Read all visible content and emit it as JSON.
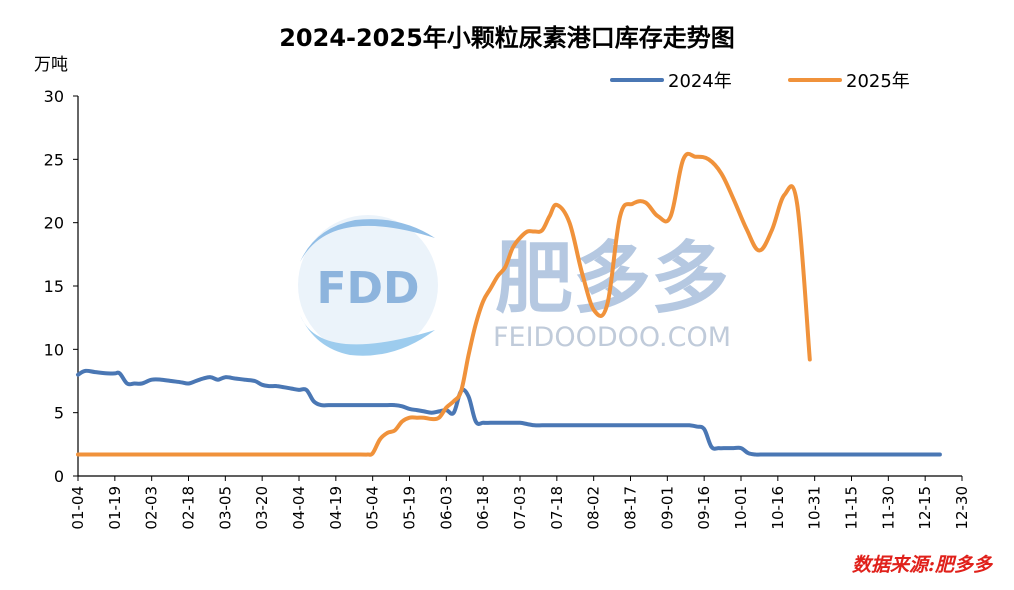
{
  "chart_data": {
    "type": "line",
    "title": "2024-2025年小颗粒尿素港口库存走势图",
    "ylabel": "万吨",
    "xlabel": "",
    "ylim": [
      0,
      30
    ],
    "yticks": [
      0,
      5,
      10,
      15,
      20,
      25,
      30
    ],
    "xticks": [
      "01-04",
      "01-19",
      "02-03",
      "02-18",
      "03-05",
      "03-20",
      "04-04",
      "04-19",
      "05-04",
      "05-19",
      "06-03",
      "06-18",
      "07-03",
      "07-18",
      "08-02",
      "08-17",
      "09-01",
      "09-16",
      "10-01",
      "10-16",
      "10-31",
      "11-15",
      "11-30",
      "12-15",
      "12-30"
    ],
    "legend_position": "top-right",
    "series": [
      {
        "name": "2024年",
        "color": "#4a77b4",
        "x": [
          0,
          2,
          4,
          8,
          11,
          13,
          15,
          17,
          19,
          21,
          24,
          26,
          28,
          30,
          32,
          34,
          36,
          37.5,
          39,
          41,
          43,
          45,
          46.5,
          47.5,
          49,
          51,
          53,
          55,
          56.5,
          57.3,
          58.2,
          59,
          62,
          65,
          67,
          70,
          72,
          73,
          74,
          75,
          76.5,
          78,
          79,
          80,
          81,
          83,
          84,
          85,
          86,
          87,
          88,
          90,
          92,
          93,
          94,
          95,
          97,
          100,
          102,
          104,
          106,
          108,
          110,
          112,
          114,
          116,
          117,
          118,
          118.6,
          119.3,
          120,
          121,
          123,
          125,
          126,
          127,
          128,
          129,
          130,
          131,
          132,
          133,
          134,
          135,
          136,
          137,
          138,
          139,
          140,
          141,
          142,
          143,
          144
        ],
        "y": [
          8.0,
          8.3,
          8.2,
          8.1,
          8.1,
          7.3,
          7.3,
          7.6,
          7.6,
          7.4,
          7.3,
          7.7,
          7.8,
          7.6,
          7.8,
          7.6,
          7.5,
          7.1,
          7.1,
          6.9,
          6.8,
          5.8,
          5.6,
          5.6,
          5.6,
          5.6,
          5.6,
          5.6,
          5.5,
          5.3,
          5.2,
          5.1,
          5.0,
          6.8,
          4.2,
          4.2,
          4.2,
          4.2,
          4.2,
          4.1,
          4.0,
          4.0,
          4.0,
          4.0,
          4.0,
          4.0,
          4.0,
          4.0,
          4.0,
          4.0,
          4.0,
          4.0,
          4.0,
          4.0,
          4.0,
          4.0,
          4.0,
          4.0,
          4.0,
          4.0,
          4.0,
          4.0,
          4.0,
          4.0,
          4.0,
          4.0,
          4.0,
          4.0,
          4.0,
          4.0,
          4.0,
          4.0,
          4.0,
          4.0,
          4.0,
          4.0,
          4.0,
          4.0,
          4.0,
          4.0,
          4.0,
          4.0,
          4.0,
          4.0,
          4.0,
          4.0,
          4.0,
          4.0,
          4.0,
          4.0,
          4.0,
          4.0,
          4.0
        ]
      },
      {
        "name": "2025年",
        "color": "#f0923b",
        "x": [
          0,
          5,
          10,
          15,
          20,
          25,
          30,
          35,
          40,
          45,
          48,
          52,
          54,
          56,
          58,
          60,
          63,
          65,
          67,
          69,
          71,
          73,
          75,
          77,
          79,
          81,
          83,
          85,
          87,
          89,
          91,
          93,
          95,
          97,
          99,
          101,
          103,
          105,
          107,
          109,
          111,
          113,
          115,
          117,
          119,
          121
        ],
        "y": [
          1.7,
          1.7,
          1.7,
          1.7,
          1.7,
          1.7,
          1.7,
          1.7,
          1.7,
          1.7,
          1.7,
          1.7,
          1.7,
          1.7,
          1.7,
          1.7,
          1.7,
          1.7,
          1.7,
          1.7,
          1.7,
          1.7,
          1.7,
          1.7,
          1.7,
          1.7,
          1.7,
          1.7,
          1.7,
          1.7,
          1.7,
          1.7,
          1.7,
          1.7,
          1.7,
          1.7,
          1.7,
          1.7,
          1.7,
          1.7,
          1.7,
          1.7,
          1.7,
          1.7,
          1.7,
          1.7
        ]
      }
    ],
    "series_note": "x is in days offset index units where 0 = 01-04 and each step of 15 days = one tick label"
  },
  "watermark": {
    "logo_text": "FDD",
    "brand": "肥多多",
    "url": "FEIDOODOO.COM"
  },
  "source_text": "数据来源:肥多多"
}
